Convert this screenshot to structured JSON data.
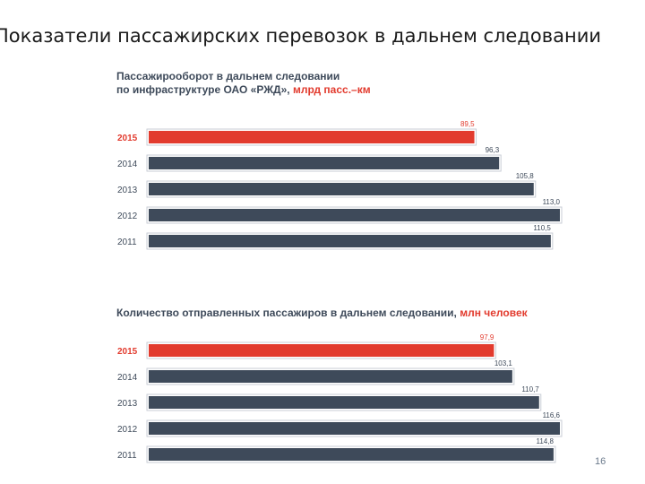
{
  "slide_title": "Показатели пассажирских перевозок в дальнем следовании",
  "page_number": "16",
  "colors": {
    "highlight": "#e23b2e",
    "bar": "#3e4a5a",
    "label": "#3e4a5a"
  },
  "chart_data": [
    {
      "type": "bar",
      "orientation": "horizontal",
      "title_line1": "Пассажирооборот в дальнем следовании",
      "title_line2": "по инфраструктуре ОАО «РЖД»,",
      "unit": "млрд пасс.–км",
      "categories": [
        "2015",
        "2014",
        "2013",
        "2012",
        "2011"
      ],
      "values": [
        89.5,
        96.3,
        105.8,
        113.0,
        110.5
      ],
      "value_labels": [
        "89,5",
        "96,3",
        "105,8",
        "113,0",
        "110,5"
      ],
      "highlight_index": 0,
      "xlim": [
        0,
        113.0
      ]
    },
    {
      "type": "bar",
      "orientation": "horizontal",
      "title_line1": "Количество отправленных пассажиров в дальнем следовании,",
      "unit": "млн человек",
      "categories": [
        "2015",
        "2014",
        "2013",
        "2012",
        "2011"
      ],
      "values": [
        97.9,
        103.1,
        110.7,
        116.6,
        114.8
      ],
      "value_labels": [
        "97,9",
        "103,1",
        "110,7",
        "116,6",
        "114,8"
      ],
      "highlight_index": 0,
      "xlim": [
        0,
        116.6
      ]
    }
  ]
}
